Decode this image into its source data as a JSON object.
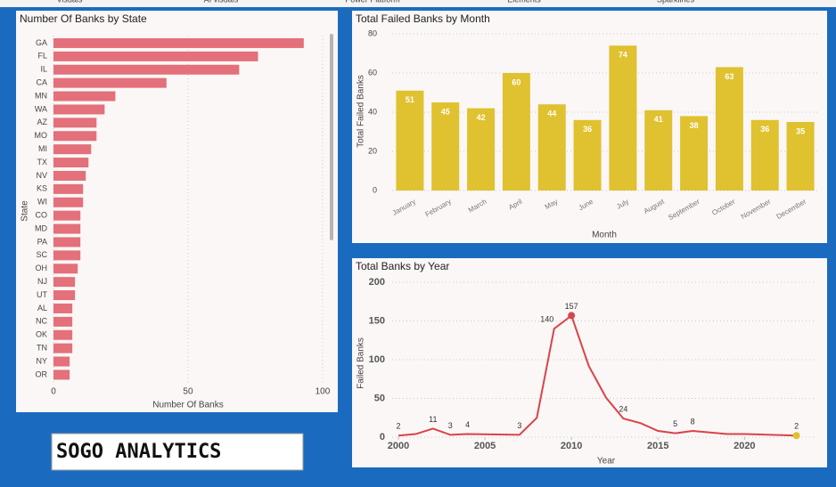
{
  "tabs": [
    "Visuals",
    "AI visuals",
    "Power Platform",
    "Elements",
    "Sparklines"
  ],
  "logo": "SOGO ANALYTICS",
  "chart_data": [
    {
      "type": "hbar",
      "title": "Number Of Banks by State",
      "x_label": "Number Of Banks",
      "y_label": "State",
      "categories": [
        "GA",
        "FL",
        "IL",
        "CA",
        "MN",
        "WA",
        "AZ",
        "MO",
        "MI",
        "TX",
        "NV",
        "KS",
        "WI",
        "CO",
        "MD",
        "PA",
        "SC",
        "OH",
        "NJ",
        "UT",
        "AL",
        "NC",
        "OK",
        "TN",
        "NY",
        "OR"
      ],
      "values": [
        93,
        76,
        69,
        42,
        23,
        19,
        16,
        16,
        14,
        13,
        12,
        11,
        11,
        10,
        10,
        10,
        10,
        9,
        8,
        8,
        7,
        7,
        7,
        7,
        6,
        6
      ],
      "color": "#e3707a",
      "xlim": [
        0,
        102
      ],
      "xticks": [
        0,
        50,
        100
      ],
      "grid": true
    },
    {
      "type": "bar",
      "title": "Total Failed Banks by Month",
      "x_label": "Month",
      "y_label": "Total Failed Banks",
      "categories": [
        "January",
        "February",
        "March",
        "April",
        "May",
        "June",
        "July",
        "August",
        "September",
        "October",
        "November",
        "December"
      ],
      "values": [
        51,
        45,
        42,
        60,
        44,
        36,
        74,
        41,
        38,
        63,
        36,
        35
      ],
      "color": "#e0c130",
      "ylim": [
        0,
        80
      ],
      "yticks": [
        0,
        20,
        40,
        60,
        80
      ],
      "grid": true
    },
    {
      "type": "line",
      "title": "Total Banks by Year",
      "x_label": "Year",
      "y_label": "Failed Banks",
      "x": [
        2000,
        2001,
        2002,
        2003,
        2004,
        2007,
        2008,
        2009,
        2010,
        2011,
        2012,
        2013,
        2014,
        2015,
        2016,
        2017,
        2019,
        2020,
        2023
      ],
      "values": [
        2,
        4,
        11,
        3,
        4,
        3,
        25,
        140,
        157,
        92,
        51,
        24,
        18,
        8,
        5,
        8,
        4,
        4,
        2
      ],
      "value_labels": [
        "2",
        null,
        "11",
        "3",
        "4",
        "3",
        null,
        "140",
        "157",
        null,
        null,
        "24",
        null,
        null,
        "5",
        "8",
        null,
        null,
        "2"
      ],
      "color": "#d9434a",
      "xlim": [
        2000,
        2024
      ],
      "xticks": [
        2000,
        2005,
        2010,
        2015,
        2020
      ],
      "ylim": [
        0,
        200
      ],
      "yticks": [
        0,
        50,
        100,
        150,
        200
      ],
      "grid": true
    }
  ]
}
